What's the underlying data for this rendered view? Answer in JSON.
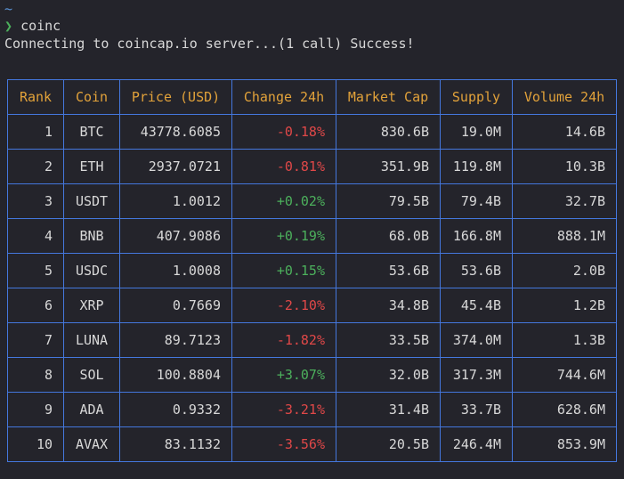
{
  "terminal": {
    "cwd": "~",
    "prompt_symbol": "❯",
    "command": "coinc",
    "status": "Connecting to coincap.io server...(1 call) Success!"
  },
  "table": {
    "headers": [
      "Rank",
      "Coin",
      "Price (USD)",
      "Change 24h",
      "Market Cap",
      "Supply",
      "Volume 24h"
    ],
    "rows": [
      {
        "rank": "1",
        "coin": "BTC",
        "price": "43778.6085",
        "change": "-0.18%",
        "trend": "neg",
        "market_cap": "830.6B",
        "supply": "19.0M",
        "volume": "14.6B"
      },
      {
        "rank": "2",
        "coin": "ETH",
        "price": "2937.0721",
        "change": "-0.81%",
        "trend": "neg",
        "market_cap": "351.9B",
        "supply": "119.8M",
        "volume": "10.3B"
      },
      {
        "rank": "3",
        "coin": "USDT",
        "price": "1.0012",
        "change": "+0.02%",
        "trend": "pos",
        "market_cap": "79.5B",
        "supply": "79.4B",
        "volume": "32.7B"
      },
      {
        "rank": "4",
        "coin": "BNB",
        "price": "407.9086",
        "change": "+0.19%",
        "trend": "pos",
        "market_cap": "68.0B",
        "supply": "166.8M",
        "volume": "888.1M"
      },
      {
        "rank": "5",
        "coin": "USDC",
        "price": "1.0008",
        "change": "+0.15%",
        "trend": "pos",
        "market_cap": "53.6B",
        "supply": "53.6B",
        "volume": "2.0B"
      },
      {
        "rank": "6",
        "coin": "XRP",
        "price": "0.7669",
        "change": "-2.10%",
        "trend": "neg",
        "market_cap": "34.8B",
        "supply": "45.4B",
        "volume": "1.2B"
      },
      {
        "rank": "7",
        "coin": "LUNA",
        "price": "89.7123",
        "change": "-1.82%",
        "trend": "neg",
        "market_cap": "33.5B",
        "supply": "374.0M",
        "volume": "1.3B"
      },
      {
        "rank": "8",
        "coin": "SOL",
        "price": "100.8804",
        "change": "+3.07%",
        "trend": "pos",
        "market_cap": "32.0B",
        "supply": "317.3M",
        "volume": "744.6M"
      },
      {
        "rank": "9",
        "coin": "ADA",
        "price": "0.9332",
        "change": "-3.21%",
        "trend": "neg",
        "market_cap": "31.4B",
        "supply": "33.7B",
        "volume": "628.6M"
      },
      {
        "rank": "10",
        "coin": "AVAX",
        "price": "83.1132",
        "change": "-3.56%",
        "trend": "neg",
        "market_cap": "20.5B",
        "supply": "246.4M",
        "volume": "853.9M"
      }
    ]
  },
  "colors": {
    "background": "#24242b",
    "text": "#d8d8d8",
    "header": "#e2a23a",
    "border": "#4477dd",
    "negative": "#e04848",
    "positive": "#4cb05c",
    "cwd": "#5a93d6"
  }
}
